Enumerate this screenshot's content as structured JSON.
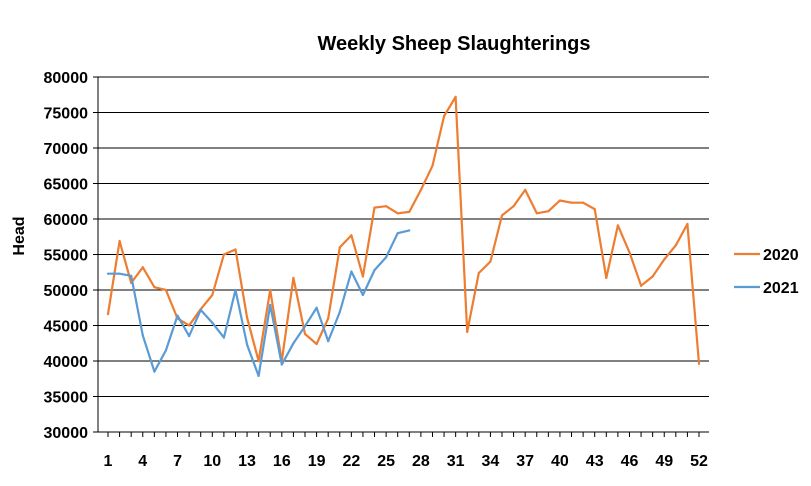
{
  "chart_data": {
    "type": "line",
    "title": "Weekly Sheep Slaughterings",
    "xlabel": "",
    "ylabel": "Head",
    "ylim": [
      30000,
      80000
    ],
    "yticks": [
      30000,
      35000,
      40000,
      45000,
      50000,
      55000,
      60000,
      65000,
      70000,
      75000,
      80000
    ],
    "ytick_labels": [
      "30000",
      "35000",
      "40000",
      "45000",
      "50000",
      "55000",
      "60000",
      "65000",
      "70000",
      "75000",
      "80000"
    ],
    "xlim": [
      1,
      52
    ],
    "xtick_labels": [
      "1",
      "4",
      "7",
      "10",
      "13",
      "16",
      "19",
      "22",
      "25",
      "28",
      "31",
      "34",
      "37",
      "40",
      "43",
      "46",
      "49",
      "52"
    ],
    "grid": "horizontal",
    "legend_position": "right",
    "series": [
      {
        "name": "2020",
        "color": "#ED7D31",
        "x": [
          1,
          2,
          3,
          4,
          5,
          6,
          7,
          8,
          9,
          10,
          11,
          12,
          13,
          14,
          15,
          16,
          17,
          18,
          19,
          20,
          21,
          22,
          23,
          24,
          25,
          26,
          27,
          28,
          29,
          30,
          31,
          32,
          33,
          34,
          35,
          36,
          37,
          38,
          39,
          40,
          41,
          42,
          43,
          44,
          45,
          46,
          47,
          48,
          49,
          50,
          51,
          52
        ],
        "values": [
          46600,
          56900,
          51000,
          53200,
          50400,
          50000,
          46000,
          45000,
          47300,
          49300,
          55000,
          55700,
          46100,
          40000,
          50000,
          40000,
          51700,
          43800,
          42400,
          46000,
          56000,
          57700,
          51900,
          61600,
          61800,
          60800,
          61000,
          64100,
          67500,
          74500,
          77200,
          44100,
          52400,
          54000,
          60500,
          61800,
          64100,
          60800,
          61100,
          62600,
          62300,
          62300,
          61400,
          51700,
          59100,
          55300,
          50600,
          51900,
          54300,
          56300,
          59300,
          39600
        ]
      },
      {
        "name": "2021",
        "color": "#5B9BD5",
        "x": [
          1,
          2,
          3,
          4,
          5,
          6,
          7,
          8,
          9,
          10,
          11,
          12,
          13,
          14,
          15,
          16,
          17,
          18,
          19,
          20,
          21,
          22,
          23,
          24,
          25,
          26,
          27
        ],
        "values": [
          52300,
          52300,
          52000,
          43600,
          38500,
          41500,
          46400,
          43500,
          47200,
          45400,
          43300,
          50000,
          42300,
          37900,
          47900,
          39500,
          42500,
          44900,
          47500,
          42800,
          46900,
          52600,
          49300,
          52800,
          54600,
          58000,
          58400
        ]
      }
    ]
  }
}
